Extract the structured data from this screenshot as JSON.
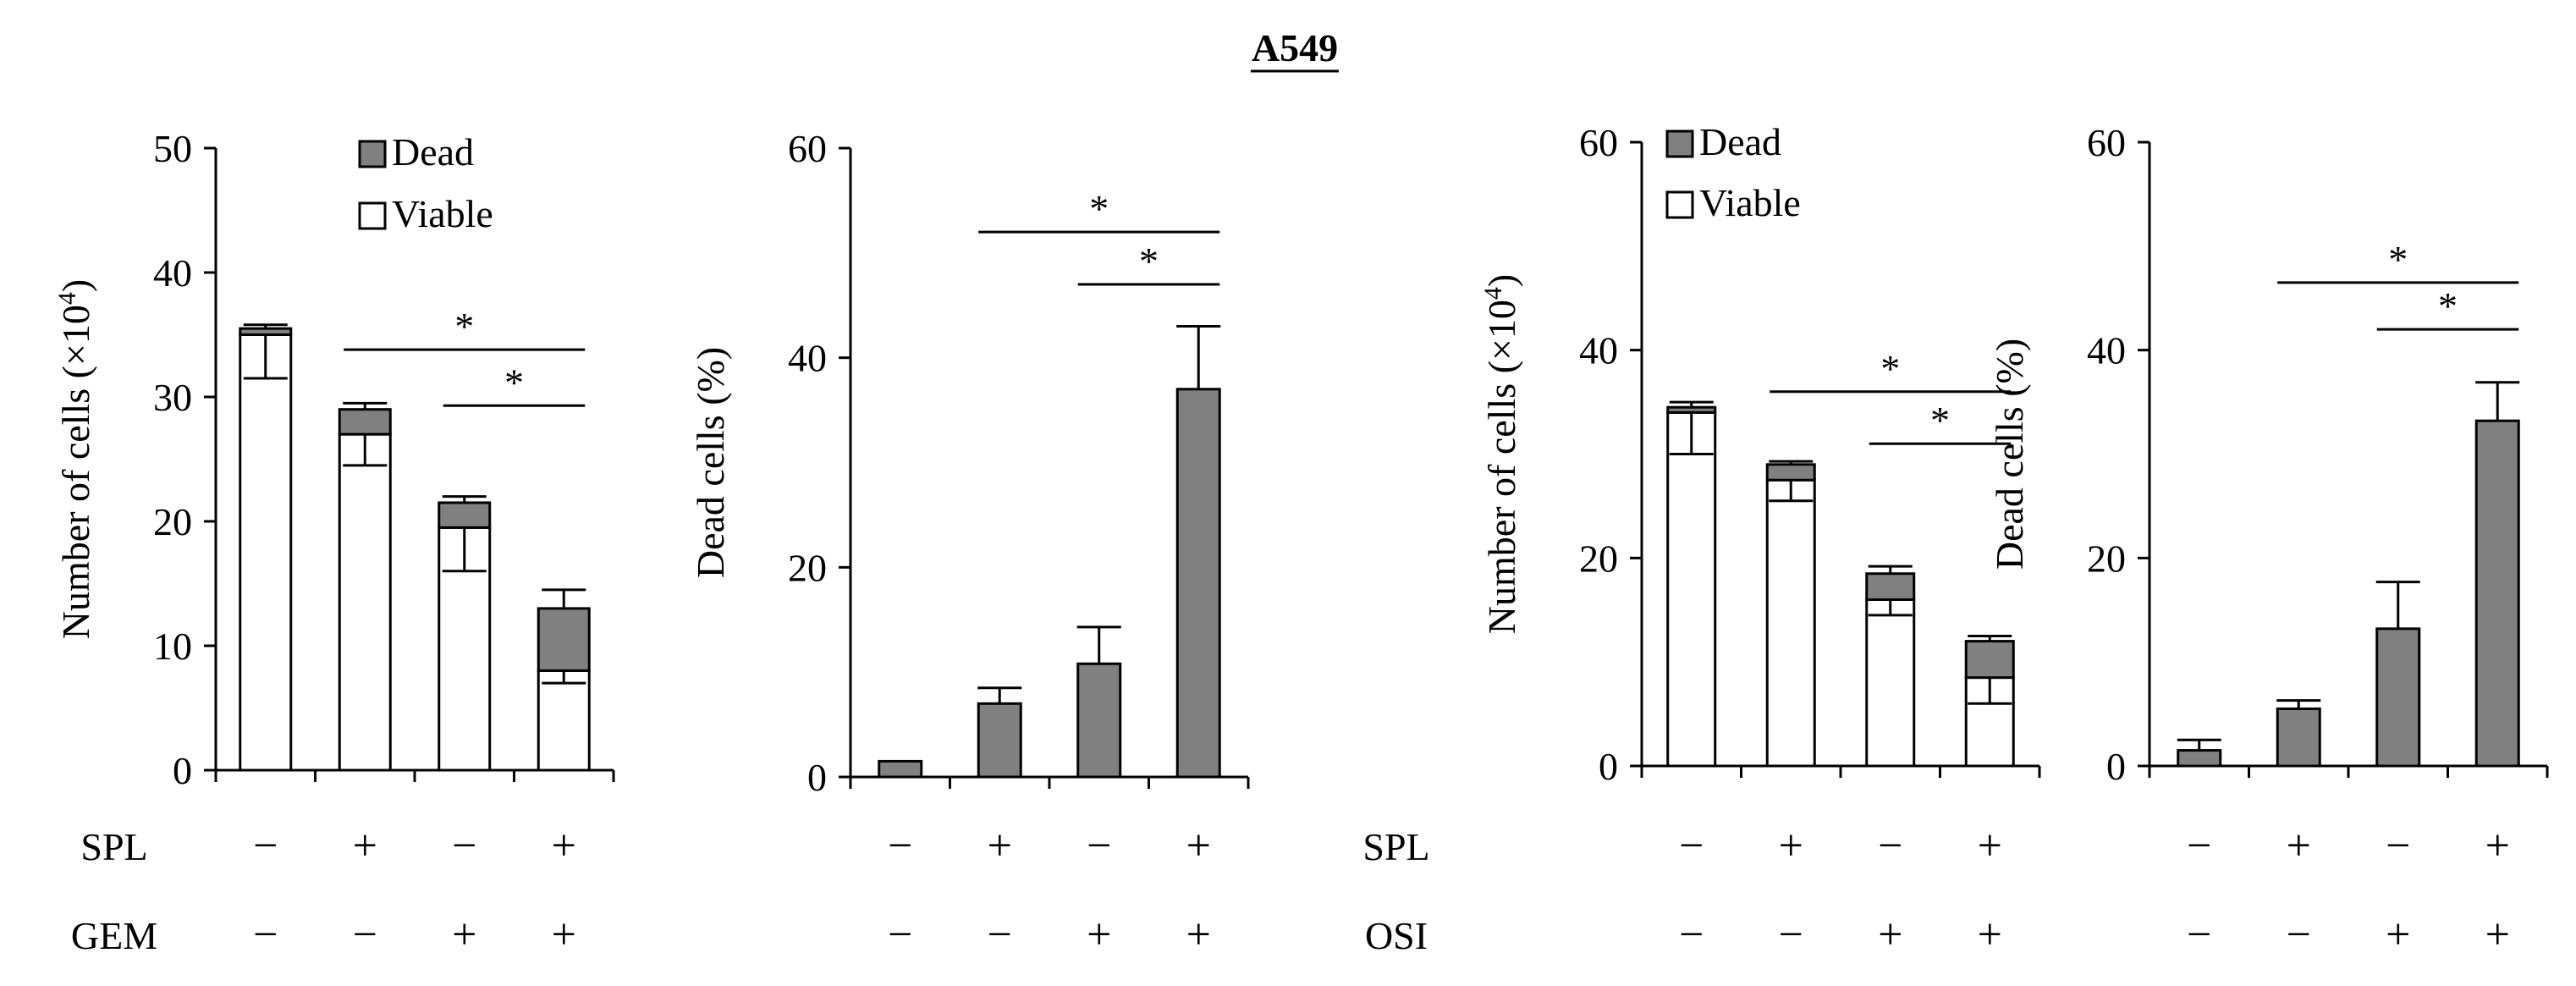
{
  "figure_title": "A549",
  "colors": {
    "dead": "#808080",
    "viable": "#ffffff",
    "axis": "#000000"
  },
  "legend": {
    "dead_label": "Dead",
    "viable_label": "Viable"
  },
  "row_labels": {
    "spl": "SPL",
    "gem": "GEM",
    "osi": "OSI"
  },
  "signs": {
    "plus": "+",
    "minus": "−"
  },
  "significance_mark": "*",
  "chart_data": [
    {
      "id": "gem-counts",
      "type": "bar",
      "stacked": true,
      "ylabel": "Number of cells (×10",
      "ylabel_sup": "4",
      "ylabel_close": ")",
      "ylim": [
        0,
        50
      ],
      "yticks": [
        0,
        10,
        20,
        30,
        40,
        50
      ],
      "legend_position": "top-right",
      "series": [
        {
          "name": "Viable",
          "values": [
            35.0,
            27.0,
            19.5,
            8.0
          ],
          "errors": [
            3.5,
            2.5,
            3.5,
            1.0
          ]
        },
        {
          "name": "Dead",
          "values": [
            0.5,
            2.0,
            2.0,
            5.0
          ],
          "errors": [
            0.3,
            0.5,
            0.5,
            1.5
          ]
        }
      ],
      "conditions": {
        "SPL": [
          "−",
          "+",
          "−",
          "+"
        ],
        "GEM": [
          "−",
          "−",
          "+",
          "+"
        ]
      },
      "significance": [
        {
          "from": 1,
          "to": 3,
          "y": 33.8,
          "label": "*"
        },
        {
          "from": 2,
          "to": 3,
          "y": 29.3,
          "label": "*"
        }
      ]
    },
    {
      "id": "gem-dead-pct",
      "type": "bar",
      "ylabel": "Dead cells (%)",
      "ylim": [
        0,
        60
      ],
      "yticks": [
        0,
        20,
        40,
        60
      ],
      "values": [
        1.5,
        7.0,
        10.8,
        37.0
      ],
      "errors": [
        0.0,
        1.5,
        3.5,
        6.0
      ],
      "conditions": {
        "SPL": [
          "−",
          "+",
          "−",
          "+"
        ],
        "GEM": [
          "−",
          "−",
          "+",
          "+"
        ]
      },
      "significance": [
        {
          "from": 1,
          "to": 3,
          "y": 52.0,
          "label": "*"
        },
        {
          "from": 2,
          "to": 3,
          "y": 47.0,
          "label": "*"
        }
      ]
    },
    {
      "id": "osi-counts",
      "type": "bar",
      "stacked": true,
      "ylabel": "Number of cells (×10",
      "ylabel_sup": "4",
      "ylabel_close": ")",
      "ylim": [
        0,
        60
      ],
      "yticks": [
        0,
        20,
        40,
        60
      ],
      "legend_position": "top-right",
      "series": [
        {
          "name": "Viable",
          "values": [
            34.0,
            27.5,
            16.0,
            8.5
          ],
          "errors": [
            4.0,
            2.0,
            1.5,
            2.5
          ]
        },
        {
          "name": "Dead",
          "values": [
            0.5,
            1.5,
            2.5,
            3.5
          ],
          "errors": [
            0.5,
            0.3,
            0.7,
            0.5
          ]
        }
      ],
      "conditions": {
        "SPL": [
          "−",
          "+",
          "−",
          "+"
        ],
        "OSI": [
          "−",
          "−",
          "+",
          "+"
        ]
      },
      "significance": [
        {
          "from": 1,
          "to": 3,
          "y": 36.0,
          "label": "*"
        },
        {
          "from": 2,
          "to": 3,
          "y": 31.0,
          "label": "*"
        }
      ]
    },
    {
      "id": "osi-dead-pct",
      "type": "bar",
      "ylabel": "Dead cells (%)",
      "ylim": [
        0,
        60
      ],
      "yticks": [
        0,
        20,
        40,
        60
      ],
      "values": [
        1.5,
        5.5,
        13.2,
        33.2
      ],
      "errors": [
        1.0,
        0.8,
        4.5,
        3.7
      ],
      "conditions": {
        "SPL": [
          "−",
          "+",
          "−",
          "+"
        ],
        "OSI": [
          "−",
          "−",
          "+",
          "+"
        ]
      },
      "significance": [
        {
          "from": 1,
          "to": 3,
          "y": 46.5,
          "label": "*"
        },
        {
          "from": 2,
          "to": 3,
          "y": 42.0,
          "label": "*"
        }
      ]
    }
  ]
}
